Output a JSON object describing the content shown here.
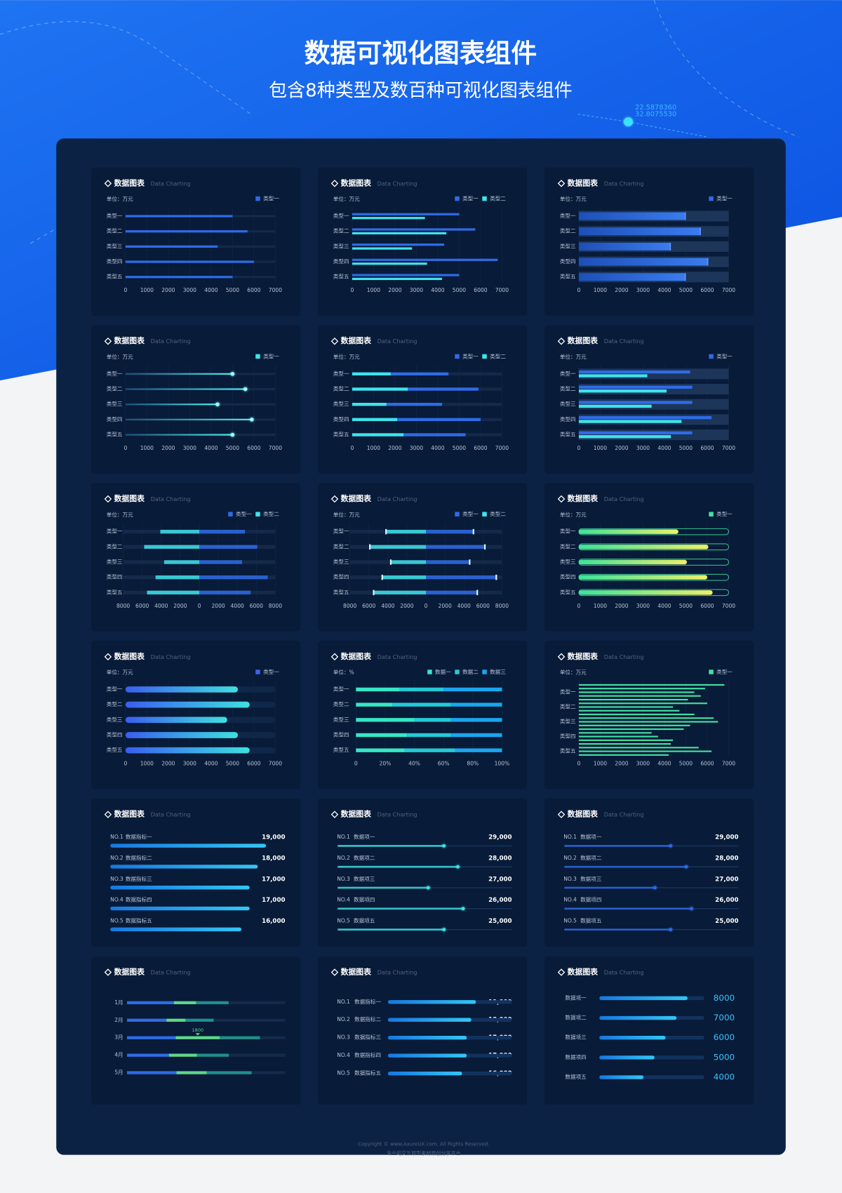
{
  "header": {
    "title": "数据可视化图表组件",
    "subtitle": "包含8种类型及数百种可视化图表组件",
    "coords": [
      "22.5878360",
      "32.8075530"
    ]
  },
  "footer": {
    "copyright": "Copyright © www.AxureUX.com, All Rights Reserved.",
    "tagline": "专业的交互原型素材原创分享平台"
  },
  "chart_data": [
    {
      "type": "bar",
      "style": "track",
      "title": "数据图表",
      "subtitle": "Data Charting",
      "unit": "单位：万元",
      "categories": [
        "类型一",
        "类型二",
        "类型三",
        "类型四",
        "类型五"
      ],
      "series": [
        {
          "name": "类型一",
          "color": "#2e6be6",
          "values": [
            5000,
            5700,
            4300,
            6000,
            5000
          ]
        }
      ],
      "xlim": [
        0,
        7000
      ],
      "xticks": [
        0,
        1000,
        2000,
        3000,
        4000,
        5000,
        6000,
        7000
      ]
    },
    {
      "type": "bar",
      "style": "pair",
      "title": "数据图表",
      "subtitle": "Data Charting",
      "unit": "单位：万元",
      "categories": [
        "类型一",
        "类型二",
        "类型三",
        "类型四",
        "类型五"
      ],
      "series": [
        {
          "name": "类型一",
          "color": "#2e6be6",
          "values": [
            5000,
            5750,
            4300,
            6800,
            5000
          ]
        },
        {
          "name": "类型二",
          "color": "#3fe3ea",
          "values": [
            3400,
            4400,
            2800,
            3500,
            4200
          ]
        }
      ],
      "xlim": [
        0,
        7000
      ],
      "xticks": [
        0,
        1000,
        2000,
        3000,
        4000,
        5000,
        6000,
        7000
      ]
    },
    {
      "type": "bar",
      "style": "band",
      "title": "数据图表",
      "subtitle": "Data Charting",
      "unit": "单位：万元",
      "categories": [
        "类型一",
        "类型二",
        "类型三",
        "类型四",
        "类型五"
      ],
      "series": [
        {
          "name": "类型一",
          "color": "#2e6be6",
          "values": [
            5000,
            5700,
            4300,
            6050,
            5000
          ]
        }
      ],
      "xlim": [
        0,
        7000
      ],
      "xticks": [
        0,
        1000,
        2000,
        3000,
        4000,
        5000,
        6000,
        7000
      ]
    },
    {
      "type": "bar",
      "style": "dot",
      "title": "数据图表",
      "subtitle": "Data Charting",
      "unit": "单位：万元",
      "categories": [
        "类型一",
        "类型二",
        "类型三",
        "类型四",
        "类型五"
      ],
      "series": [
        {
          "name": "类型一",
          "color": "#3fe3ea",
          "values": [
            5000,
            5600,
            4300,
            5900,
            5000
          ]
        }
      ],
      "xlim": [
        0,
        7000
      ],
      "xticks": [
        0,
        1000,
        2000,
        3000,
        4000,
        5000,
        6000,
        7000
      ]
    },
    {
      "type": "bar",
      "style": "overlay",
      "title": "数据图表",
      "subtitle": "Data Charting",
      "unit": "单位：万元",
      "categories": [
        "类型一",
        "类型二",
        "类型三",
        "类型四",
        "类型五"
      ],
      "series": [
        {
          "name": "类型一",
          "color": "#2e6be6",
          "values": [
            4500,
            5900,
            4200,
            6000,
            5300
          ]
        },
        {
          "name": "类型二",
          "color": "#3fe3ea",
          "values": [
            1800,
            2600,
            1600,
            2100,
            2400
          ]
        }
      ],
      "xlim": [
        0,
        7000
      ],
      "xticks": [
        0,
        1000,
        2000,
        3000,
        4000,
        5000,
        6000,
        7000
      ]
    },
    {
      "type": "bar",
      "style": "overlay-band",
      "title": "数据图表",
      "subtitle": "Data Charting",
      "unit": "单位：万元",
      "categories": [
        "类型一",
        "类型二",
        "类型三",
        "类型四",
        "类型五"
      ],
      "series": [
        {
          "name": "类型一",
          "color": "#2e6be6",
          "values": [
            5200,
            5300,
            5300,
            6200,
            5300
          ]
        },
        {
          "color": "#3fe3ea",
          "values": [
            3200,
            4100,
            3400,
            4800,
            4300
          ]
        }
      ],
      "xlim": [
        0,
        7000
      ],
      "xticks": [
        0,
        1000,
        2000,
        3000,
        4000,
        5000,
        6000,
        7000
      ]
    },
    {
      "type": "diverging",
      "title": "数据图表",
      "subtitle": "Data Charting",
      "unit": "单位：万元",
      "categories": [
        "类型一",
        "类型二",
        "类型三",
        "类型四",
        "类型五"
      ],
      "series": [
        {
          "name": "类型一",
          "color": "#2e6be6",
          "values": [
            4800,
            6100,
            4500,
            7200,
            5400
          ]
        },
        {
          "name": "类型二",
          "color": "#3fe3ea",
          "values": [
            -4100,
            -5800,
            -3700,
            -4600,
            -5500
          ]
        }
      ],
      "xlim": [
        -8000,
        8000
      ],
      "xticks": [
        {
          "value": -8000,
          "label": "8000"
        },
        {
          "value": -6000,
          "label": "6000"
        },
        {
          "value": -4000,
          "label": "4000"
        },
        {
          "value": -2000,
          "label": "2000"
        },
        0,
        2000,
        4000,
        6000,
        8000
      ]
    },
    {
      "type": "diverging",
      "style": "cap",
      "title": "数据图表",
      "subtitle": "Data Charting",
      "unit": "单位：万元",
      "categories": [
        "类型一",
        "类型二",
        "类型三",
        "类型四",
        "类型五"
      ],
      "series": [
        {
          "name": "类型一",
          "color": "#2e6be6",
          "values": [
            5000,
            6200,
            4600,
            7400,
            5400
          ]
        },
        {
          "name": "类型二",
          "color": "#3fe3ea",
          "values": [
            -4200,
            -5900,
            -3700,
            -4600,
            -5500
          ]
        }
      ],
      "xlim": [
        -8000,
        8000
      ],
      "xticks": [
        {
          "value": -8000,
          "label": "8000"
        },
        {
          "value": -6000,
          "label": "6000"
        },
        {
          "value": -4000,
          "label": "4000"
        },
        {
          "value": -2000,
          "label": "2000"
        },
        0,
        2000,
        4000,
        6000,
        8000
      ]
    },
    {
      "type": "bar",
      "style": "glow-track",
      "title": "数据图表",
      "subtitle": "Data Charting",
      "unit": "单位：万元",
      "categories": [
        "类型一",
        "类型二",
        "类型三",
        "类型四",
        "类型五"
      ],
      "series": [
        {
          "name": "类型一",
          "color": "#44e0a0",
          "values": [
            4650,
            6050,
            5050,
            6000,
            6250
          ]
        }
      ],
      "xlim": [
        0,
        7000
      ],
      "xticks": [
        0,
        1000,
        2000,
        3000,
        4000,
        5000,
        6000,
        7000
      ]
    },
    {
      "type": "bar",
      "style": "thick",
      "title": "数据图表",
      "subtitle": "Data Charting",
      "unit": "单位：万元",
      "categories": [
        "类型一",
        "类型二",
        "类型三",
        "类型四",
        "类型五"
      ],
      "series": [
        {
          "name": "类型一",
          "color": "#3a62f0",
          "values": [
            5250,
            5800,
            4750,
            5250,
            5800
          ]
        }
      ],
      "xlim": [
        0,
        7000
      ],
      "xticks": [
        0,
        1000,
        2000,
        3000,
        4000,
        5000,
        6000,
        7000
      ]
    },
    {
      "type": "stacked_bar",
      "title": "数据图表",
      "subtitle": "Data Charting",
      "unit": "单位：%",
      "categories": [
        "类型一",
        "类型二",
        "类型三",
        "类型四",
        "类型五"
      ],
      "series": [
        {
          "name": "数据一",
          "color": "#36e6c5",
          "values": [
            30,
            25,
            40,
            35,
            33
          ]
        },
        {
          "name": "数据二",
          "color": "#25c9d6",
          "values": [
            30,
            40,
            25,
            30,
            35
          ]
        },
        {
          "name": "数据三",
          "color": "#1aa6ee",
          "values": [
            40,
            35,
            35,
            35,
            32
          ]
        }
      ],
      "xlim": [
        0,
        100
      ],
      "xticks": [
        0,
        {
          "value": 20,
          "label": "20%"
        },
        {
          "value": 40,
          "label": "40%"
        },
        {
          "value": 60,
          "label": "60%"
        },
        {
          "value": 80,
          "label": "80%"
        },
        {
          "value": 100,
          "label": "100%"
        }
      ]
    },
    {
      "type": "bar",
      "style": "lines",
      "title": "数据图表",
      "subtitle": "Data Charting",
      "unit": "单位：万元",
      "categories": [
        null,
        null,
        "类型一",
        null,
        null,
        null,
        "类型二",
        null,
        null,
        null,
        "类型三",
        null,
        null,
        null,
        "类型四",
        null,
        null,
        null,
        "类型五",
        null
      ],
      "series": [
        {
          "name": "类型一",
          "color": "#44e0a0",
          "values": [
            6800,
            5900,
            5400,
            5700,
            5100,
            6000,
            4400,
            4700,
            5400,
            6300,
            6500,
            5200,
            4900,
            3400,
            3700,
            4400,
            4300,
            5600,
            6200,
            4200
          ]
        }
      ],
      "xlim": [
        0,
        7000
      ],
      "xticks": [
        0,
        1000,
        2000,
        3000,
        4000,
        5000,
        6000,
        7000
      ]
    },
    {
      "type": "ranking",
      "title": "数据图表",
      "subtitle": "Data Charting",
      "ranks": [
        "NO.1",
        "NO.2",
        "NO.3",
        "NO.4",
        "NO.5"
      ],
      "names": [
        "数据指标一",
        "数据指标二",
        "数据指标三",
        "数据指标四",
        "数据指标五"
      ],
      "values": [
        19000,
        18000,
        17000,
        17000,
        16000
      ],
      "value_labels": [
        "19,000",
        "18,000",
        "17,000",
        "17,000",
        "16,000"
      ],
      "color": "#1e9be8"
    },
    {
      "type": "progress",
      "title": "数据图表",
      "subtitle": "Data Charting",
      "ranks": [
        "NO.1",
        "NO.2",
        "NO.3",
        "NO.4",
        "NO.5"
      ],
      "names": [
        "数据项一",
        "数据项二",
        "数据项三",
        "数据项四",
        "数据项五"
      ],
      "values": [
        29000,
        28000,
        27000,
        26000,
        25000
      ],
      "value_labels": [
        "29,000",
        "28,000",
        "27,000",
        "26,000",
        "25,000"
      ],
      "progress": [
        61,
        69,
        52,
        72,
        61
      ],
      "color": "#3fe3ea"
    },
    {
      "type": "progress",
      "title": "数据图表",
      "subtitle": "Data Charting",
      "ranks": [
        "NO.1",
        "NO.2",
        "NO.3",
        "NO.4",
        "NO.5"
      ],
      "names": [
        "数据项一",
        "数据项二",
        "数据项三",
        "数据项四",
        "数据项五"
      ],
      "values": [
        29000,
        28000,
        27000,
        26000,
        25000
      ],
      "value_labels": [
        "29,000",
        "28,000",
        "27,000",
        "26,000",
        "25,000"
      ],
      "progress": [
        61,
        70,
        52,
        73,
        61
      ],
      "color": "#2e6be6"
    },
    {
      "type": "segments",
      "title": "数据图表",
      "subtitle": "Data Charting",
      "categories": [
        "1月",
        "2月",
        "3月",
        "4月",
        "5月"
      ],
      "series": [
        {
          "color": "#2e6be6",
          "values": [
            1920,
            1610,
            1990,
            1710,
            2020
          ]
        },
        {
          "color": "#5fd68a",
          "values": [
            900,
            780,
            1800,
            1150,
            1240
          ],
          "value_labels": [
            null,
            null,
            "1800",
            null,
            null
          ]
        },
        {
          "color": "#1f8f8a",
          "values": [
            1330,
            1150,
            1640,
            1300,
            1830
          ]
        }
      ]
    },
    {
      "type": "ranking",
      "style": "inline",
      "title": "数据图表",
      "subtitle": "Data Charting",
      "ranks": [
        "NO.1",
        "NO.2",
        "NO.3",
        "NO.4",
        "NO.5"
      ],
      "names": [
        "数据指标一",
        "数据指标二",
        "数据指标三",
        "数据指标四",
        "数据指标五"
      ],
      "values": [
        19000,
        18000,
        17000,
        17000,
        16000
      ],
      "value_labels": [
        "19,000",
        "18,000",
        "17,000",
        "17,000",
        "16,000"
      ],
      "color": "#1e9be8"
    },
    {
      "type": "ranking",
      "style": "big",
      "title": "数据图表",
      "subtitle": "Data Charting",
      "names": [
        "数据项一",
        "数据项二",
        "数据项三",
        "数据项四",
        "数据项五"
      ],
      "values": [
        8000,
        7000,
        6000,
        5000,
        4000
      ],
      "color": "#1e9be8"
    }
  ]
}
